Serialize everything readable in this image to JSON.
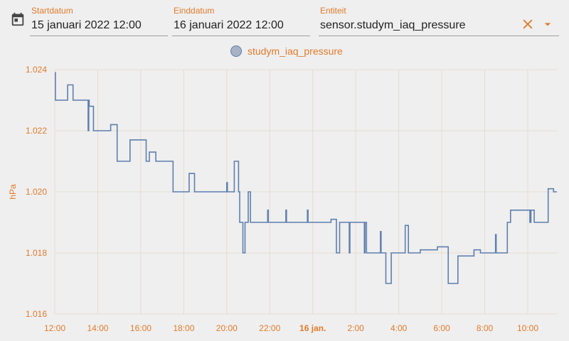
{
  "filters": {
    "start_label": "Startdatum",
    "start_value": "15 januari 2022 12:00",
    "end_label": "Einddatum",
    "end_value": "16 januari 2022 12:00",
    "entity_label": "Entiteit",
    "entity_value": "sensor.studym_iaq_pressure"
  },
  "icons": {
    "calendar": "calendar-icon",
    "clear": "close-icon",
    "dropdown": "chevron-down-icon"
  },
  "colors": {
    "accent": "#e07b2c",
    "line": "#5f7fae",
    "grid": "#e7dcd0"
  },
  "chart_data": {
    "type": "line",
    "ylabel": "hPa",
    "ylim": [
      1.016,
      1.024
    ],
    "y_ticks": [
      "1.016",
      "1.018",
      "1.020",
      "1.022",
      "1.024"
    ],
    "x_ticks": [
      {
        "label": "12:00",
        "hour": 0
      },
      {
        "label": "14:00",
        "hour": 2
      },
      {
        "label": "16:00",
        "hour": 4
      },
      {
        "label": "18:00",
        "hour": 6
      },
      {
        "label": "20:00",
        "hour": 8
      },
      {
        "label": "22:00",
        "hour": 10
      },
      {
        "label": "16 jan.",
        "hour": 12,
        "bold": true
      },
      {
        "label": "2:00",
        "hour": 14
      },
      {
        "label": "4:00",
        "hour": 16
      },
      {
        "label": "6:00",
        "hour": 18
      },
      {
        "label": "8:00",
        "hour": 20
      },
      {
        "label": "10:00",
        "hour": 22
      }
    ],
    "x_range_hours": [
      0,
      23.5
    ],
    "series": [
      {
        "name": "studym_iaq_pressure",
        "step": true,
        "points": [
          [
            0.0,
            1.0239
          ],
          [
            0.03,
            1.023
          ],
          [
            0.6,
            1.0235
          ],
          [
            0.85,
            1.023
          ],
          [
            1.55,
            1.022
          ],
          [
            1.58,
            1.023
          ],
          [
            1.6,
            1.0228
          ],
          [
            1.8,
            1.022
          ],
          [
            2.6,
            1.0222
          ],
          [
            2.9,
            1.021
          ],
          [
            3.5,
            1.0217
          ],
          [
            4.25,
            1.021
          ],
          [
            4.4,
            1.0213
          ],
          [
            4.7,
            1.021
          ],
          [
            5.5,
            1.02
          ],
          [
            6.25,
            1.0206
          ],
          [
            6.5,
            1.02
          ],
          [
            8.0,
            1.0203
          ],
          [
            8.03,
            1.02
          ],
          [
            8.35,
            1.021
          ],
          [
            8.55,
            1.02
          ],
          [
            8.6,
            1.019
          ],
          [
            8.75,
            1.018
          ],
          [
            8.85,
            1.019
          ],
          [
            9.0,
            1.02
          ],
          [
            9.1,
            1.019
          ],
          [
            9.9,
            1.0194
          ],
          [
            9.93,
            1.019
          ],
          [
            10.75,
            1.0194
          ],
          [
            10.78,
            1.019
          ],
          [
            11.75,
            1.0194
          ],
          [
            11.78,
            1.019
          ],
          [
            12.85,
            1.0191
          ],
          [
            13.1,
            1.018
          ],
          [
            13.25,
            1.019
          ],
          [
            13.7,
            1.018
          ],
          [
            13.73,
            1.019
          ],
          [
            14.2,
            1.019
          ],
          [
            14.4,
            1.018
          ],
          [
            14.43,
            1.019
          ],
          [
            14.5,
            1.018
          ],
          [
            15.15,
            1.0187
          ],
          [
            15.18,
            1.018
          ],
          [
            15.4,
            1.017
          ],
          [
            15.65,
            1.018
          ],
          [
            16.3,
            1.0189
          ],
          [
            16.45,
            1.018
          ],
          [
            17.0,
            1.0181
          ],
          [
            17.8,
            1.0182
          ],
          [
            18.3,
            1.017
          ],
          [
            18.75,
            1.0179
          ],
          [
            19.5,
            1.0181
          ],
          [
            19.8,
            1.018
          ],
          [
            20.5,
            1.0186
          ],
          [
            20.53,
            1.018
          ],
          [
            21.05,
            1.019
          ],
          [
            21.2,
            1.0194
          ],
          [
            22.1,
            1.019
          ],
          [
            22.15,
            1.0194
          ],
          [
            22.3,
            1.019
          ],
          [
            22.95,
            1.0201
          ],
          [
            23.2,
            1.02
          ]
        ]
      }
    ]
  }
}
